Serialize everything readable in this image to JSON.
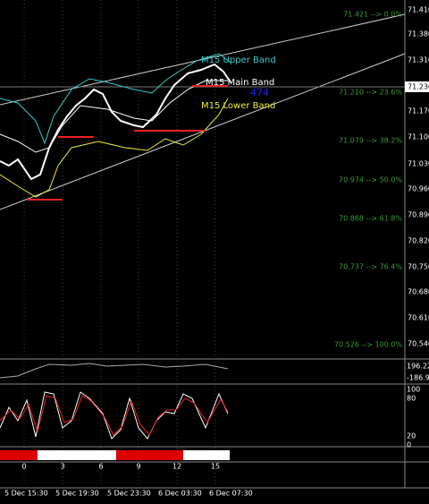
{
  "price_axis": [
    "71.410",
    "71.380",
    "71.310",
    "71.236",
    "71.170",
    "71.100",
    "71.030",
    "70.960",
    "70.890",
    "70.820",
    "70.750",
    "70.680",
    "70.610",
    "70.540"
  ],
  "fib_levels": [
    "71.421 --> 0.0%",
    "71.210 --> 23.6%",
    "71.079 --> 38.2%",
    "70.974 --> 50.0%",
    "70.868 --> 61.8%",
    "70.737 --> 76.4%",
    "70.526 --> 100.0%"
  ],
  "bands": {
    "upper": "M15 Upper Band",
    "main": "M15 Main Band",
    "lower": "M15 Lower Band",
    "count": "474"
  },
  "indicator1_axis": [
    "196.22",
    "-186.99"
  ],
  "indicator2_axis": [
    "100",
    "80",
    "20",
    "0"
  ],
  "indicator3_labels": [
    "0",
    "3",
    "6",
    "9",
    "12",
    "15"
  ],
  "time_axis": [
    "5 Dec 15:30",
    "5 Dec 19:30",
    "5 Dec 23:30",
    "6 Dec 03:30",
    "6 Dec 07:30"
  ]
}
